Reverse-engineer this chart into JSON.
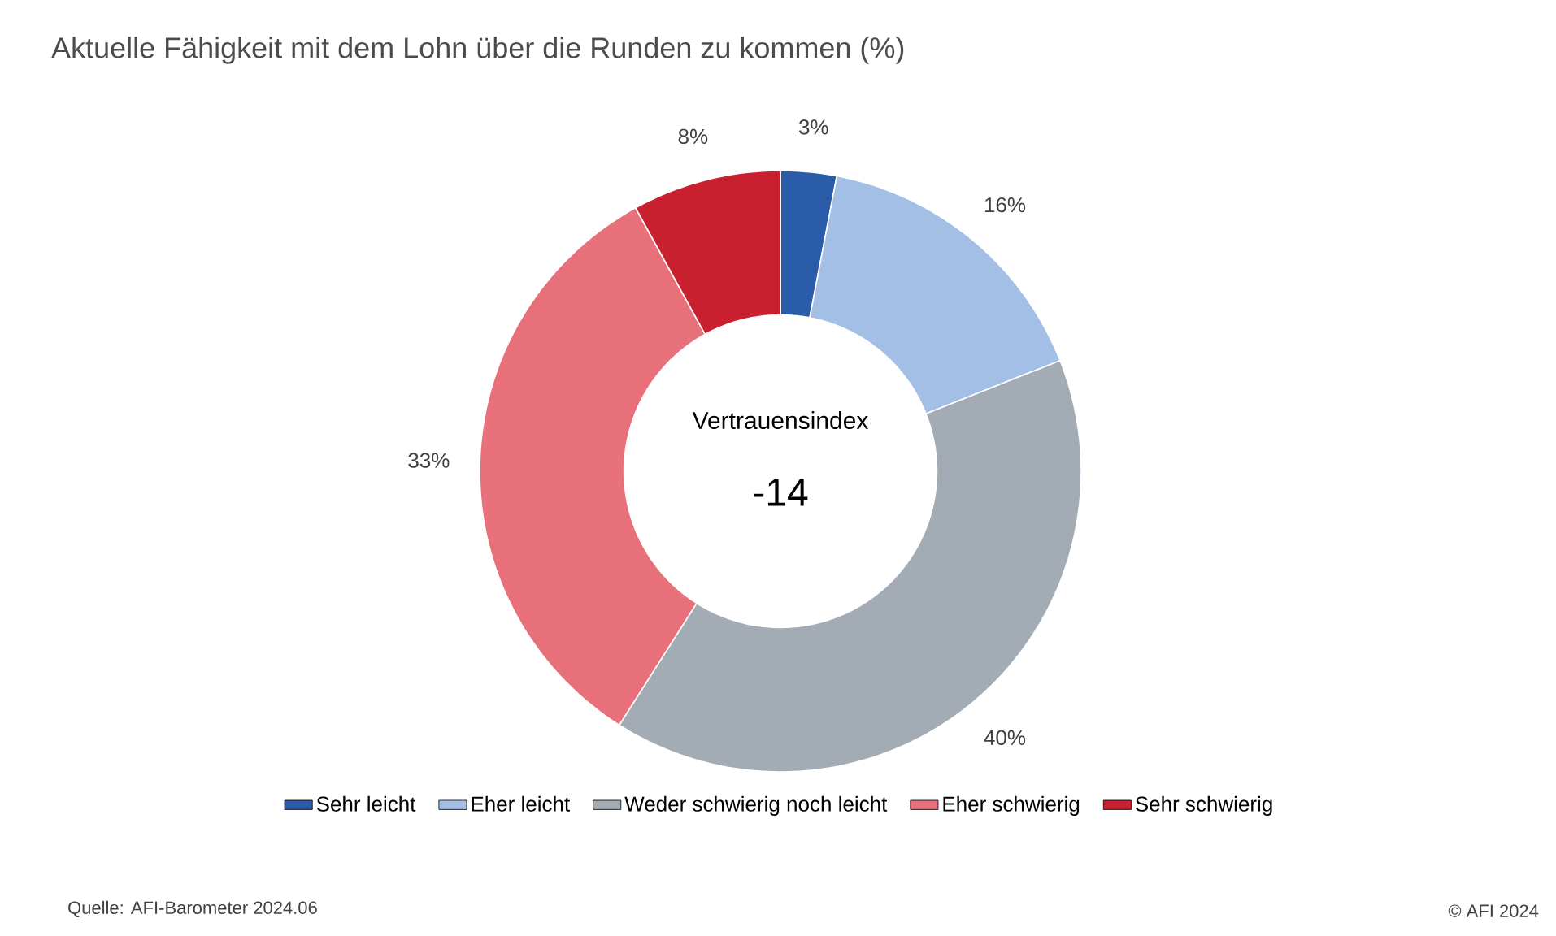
{
  "chart_data": {
    "type": "donut",
    "title": "Aktuelle Fähigkeit mit dem Lohn über die Runden zu kommen (%)",
    "categories": [
      "Sehr leicht",
      "Eher leicht",
      "Weder schwierig noch leicht",
      "Eher schwierig",
      "Sehr schwierig"
    ],
    "values": [
      3,
      16,
      40,
      33,
      8
    ],
    "value_labels": [
      "3%",
      "16%",
      "40%",
      "33%",
      "8%"
    ],
    "colors": [
      "#2a5caa",
      "#a3bfe6",
      "#a3abb5",
      "#e8707a",
      "#c9202f"
    ],
    "legend": "bottom",
    "annotations": [
      "Vertrauensindex",
      "-14",
      "Quelle: AFI-Barometer 2024.06",
      "© AFI 2024"
    ]
  }
}
